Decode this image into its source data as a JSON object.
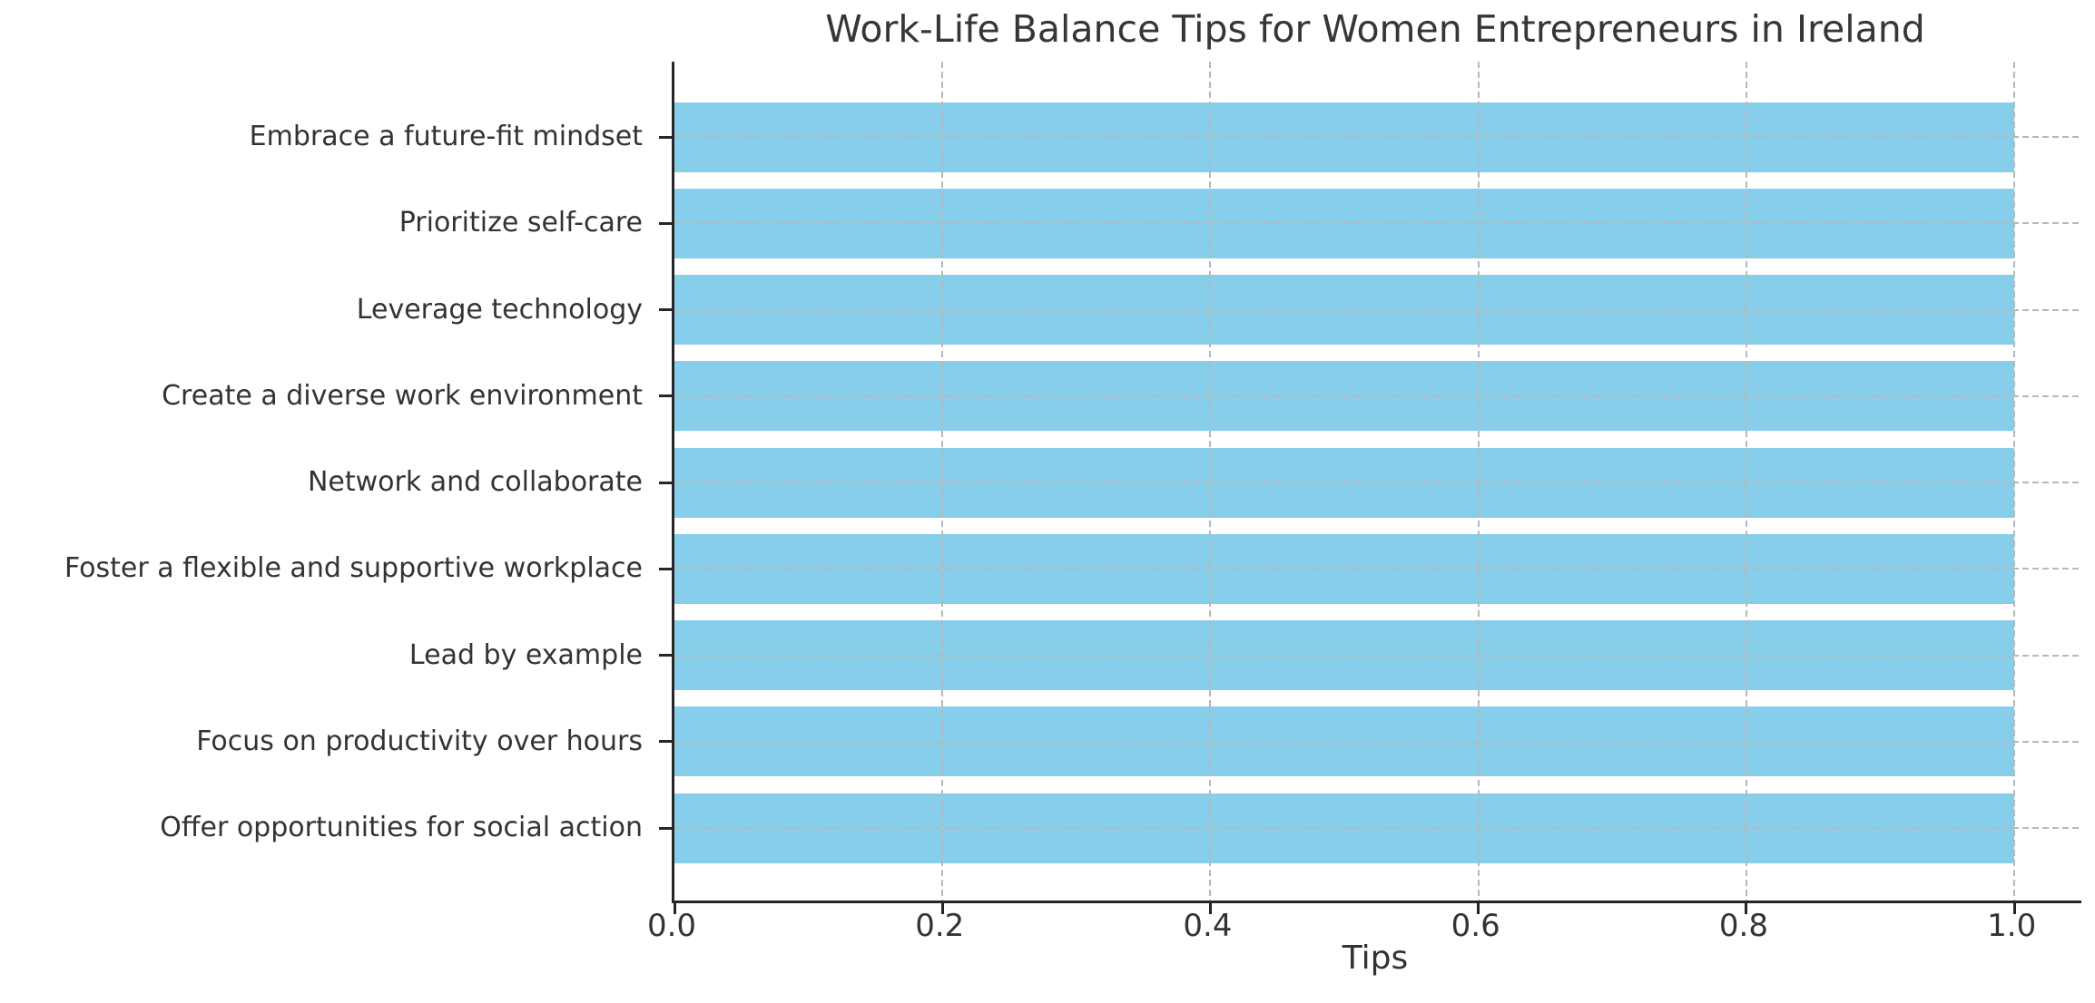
{
  "chart_data": {
    "type": "bar",
    "orientation": "horizontal",
    "title": "Work-Life Balance Tips for Women Entrepreneurs in Ireland",
    "xlabel": "Tips",
    "ylabel": "",
    "categories": [
      "Embrace a future-fit mindset",
      "Prioritize self-care",
      "Leverage technology",
      "Create a diverse work environment",
      "Network and collaborate",
      "Foster a flexible and supportive workplace",
      "Lead by example",
      "Focus on productivity over hours",
      "Offer opportunities for social action"
    ],
    "values": [
      1.0,
      1.0,
      1.0,
      1.0,
      1.0,
      1.0,
      1.0,
      1.0,
      1.0
    ],
    "xlim": [
      0,
      1.05
    ],
    "xticks": [
      0.0,
      0.2,
      0.4,
      0.6,
      0.8,
      1.0
    ],
    "xtick_labels": [
      "0.0",
      "0.2",
      "0.4",
      "0.6",
      "0.8",
      "1.0"
    ],
    "grid": "both-axes-dashed",
    "legend": "none",
    "colors": {
      "bar": "#87CEEB",
      "grid": "#b5b9bb",
      "text": "#333333",
      "spine": "#262626",
      "background": "#ffffff"
    }
  }
}
